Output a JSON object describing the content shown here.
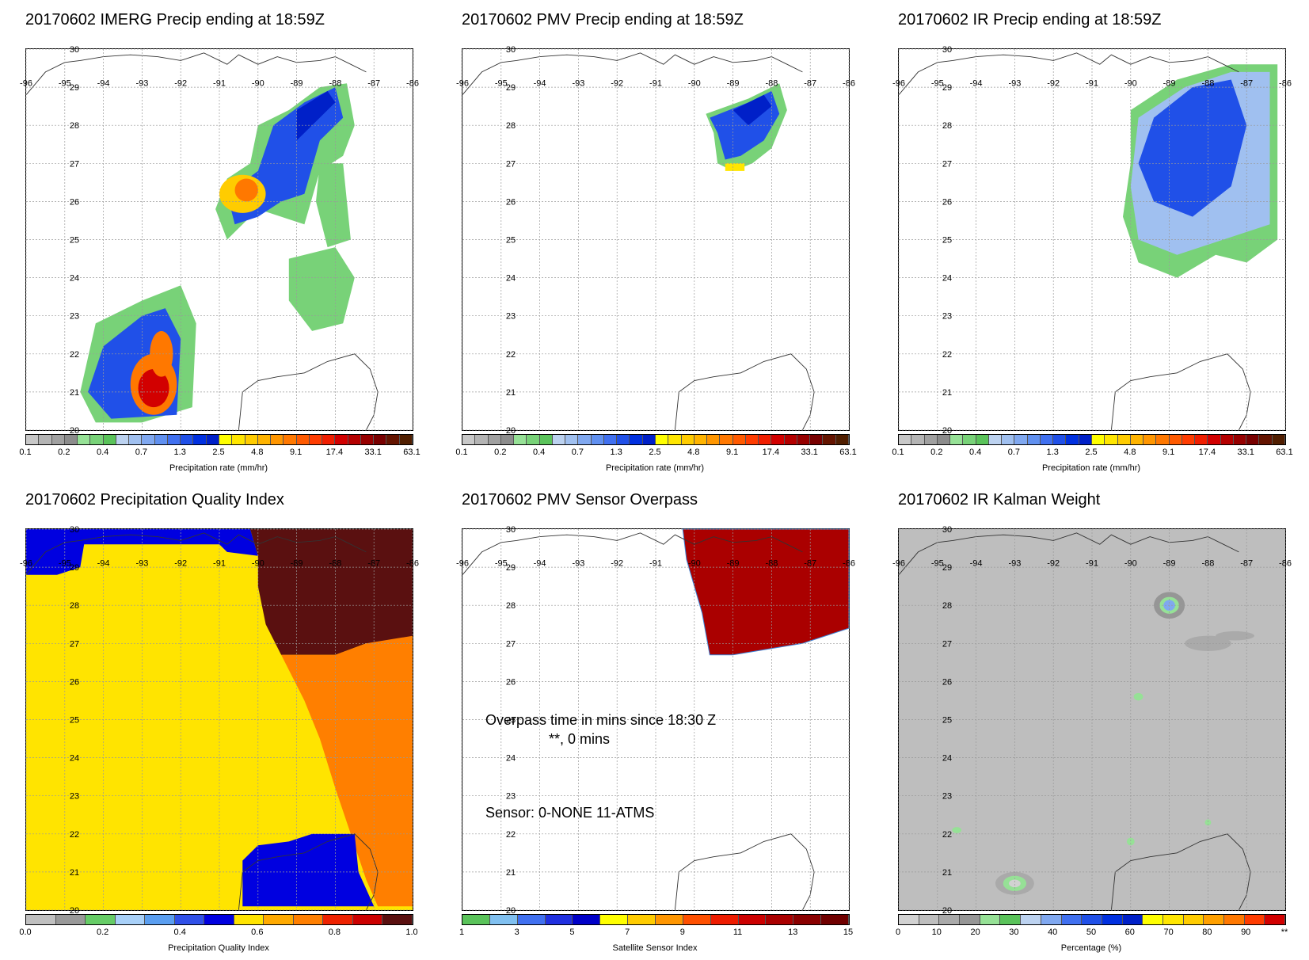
{
  "grid": {
    "lon_labels": [
      "-96",
      "-95",
      "-94",
      "-93",
      "-92",
      "-91",
      "-90",
      "-89",
      "-88",
      "-87",
      "-86"
    ],
    "lat_labels": [
      "20",
      "21",
      "22",
      "23",
      "24",
      "25",
      "26",
      "27",
      "28",
      "29",
      "30"
    ],
    "lon_range": [
      -96,
      -86
    ],
    "lat_range": [
      20,
      30
    ]
  },
  "panels": [
    {
      "id": "imerg",
      "title": "20170602 IMERG Precip ending at 18:59Z",
      "colorbar_title": "Precipitation rate (mm/hr)",
      "tick_labels": [
        "0.1",
        "0.2",
        "0.4",
        "0.7",
        "1.3",
        "2.5",
        "4.8",
        "9.1",
        "17.4",
        "33.1",
        "63.1"
      ]
    },
    {
      "id": "pmv",
      "title": "20170602 PMV Precip ending at 18:59Z",
      "colorbar_title": "Precipitation rate (mm/hr)",
      "tick_labels": [
        "0.1",
        "0.2",
        "0.4",
        "0.7",
        "1.3",
        "2.5",
        "4.8",
        "9.1",
        "17.4",
        "33.1",
        "63.1"
      ]
    },
    {
      "id": "ir",
      "title": "20170602 IR Precip ending at 18:59Z",
      "colorbar_title": "Precipitation rate (mm/hr)",
      "tick_labels": [
        "0.1",
        "0.2",
        "0.4",
        "0.7",
        "1.3",
        "2.5",
        "4.8",
        "9.1",
        "17.4",
        "33.1",
        "63.1"
      ]
    },
    {
      "id": "pqi",
      "title": "20170602 Precipitation Quality Index",
      "colorbar_title": "Precipitation Quality Index",
      "tick_labels": [
        "0.0",
        "0.2",
        "0.4",
        "0.6",
        "0.8",
        "1.0"
      ]
    },
    {
      "id": "overpass",
      "title": "20170602 PMV Sensor Overpass",
      "colorbar_title": "Satellite Sensor Index",
      "tick_labels": [
        "1",
        "3",
        "5",
        "7",
        "9",
        "11",
        "13",
        "15"
      ],
      "overpass_text": "Overpass time in mins since 18:30 Z",
      "overpass_value": "**, 0 mins",
      "sensor_text": "Sensor:   0-NONE 11-ATMS"
    },
    {
      "id": "kalman",
      "title": "20170602 IR Kalman Weight",
      "colorbar_title": "Percentage (%)",
      "tick_labels": [
        "0",
        "10",
        "20",
        "30",
        "40",
        "50",
        "60",
        "70",
        "80",
        "90",
        "**"
      ]
    }
  ],
  "colors": {
    "precip_scale": [
      "#c8c8c8",
      "#b4b4b4",
      "#a0a0a0",
      "#8c8c8c",
      "#96e196",
      "#78d278",
      "#5ac35a",
      "#bcd2f0",
      "#a0c0f0",
      "#80a8f0",
      "#6090f0",
      "#4070f0",
      "#2050e8",
      "#0030e0",
      "#0020c8",
      "#ffff00",
      "#ffe600",
      "#ffcc00",
      "#ffb400",
      "#ff9600",
      "#ff7800",
      "#ff5a00",
      "#ff3c00",
      "#f01e00",
      "#d20000",
      "#b40000",
      "#960000",
      "#780000",
      "#641400",
      "#501e00"
    ],
    "pqi_scale": [
      "#c0c0c0",
      "#999999",
      "#66cc66",
      "#a8d0f8",
      "#5a9ef0",
      "#3050e8",
      "#0000e0",
      "#ffe400",
      "#ffaa00",
      "#ff7f00",
      "#ee2200",
      "#cc0000",
      "#5a1010"
    ],
    "sensor_scale": [
      "#5ac35a",
      "#80c0f0",
      "#4070f0",
      "#2030e0",
      "#0000c8",
      "#ffff00",
      "#ffcc00",
      "#ff9600",
      "#ff5000",
      "#ee1c00",
      "#cc0000",
      "#aa0000",
      "#8a0000",
      "#700000"
    ],
    "kalman_scale": [
      "#d2d2d2",
      "#bebebe",
      "#aaaaaa",
      "#969696",
      "#96e196",
      "#5ac35a",
      "#bcd2f0",
      "#80a8f0",
      "#4070f0",
      "#2050e8",
      "#0030e0",
      "#0020c8",
      "#ffff00",
      "#ffe600",
      "#ffcc00",
      "#ffa000",
      "#ff7800",
      "#ff3c00",
      "#d20000"
    ]
  },
  "chart_data": [
    {
      "type": "heatmap",
      "title": "20170602 IMERG Precip ending at 18:59Z",
      "colorbar_label": "Precipitation rate (mm/hr)",
      "xlim": [
        -96,
        -86
      ],
      "ylim": [
        20,
        30
      ],
      "colorbar_ticks": [
        0.1,
        0.2,
        0.4,
        0.7,
        1.3,
        2.5,
        4.8,
        9.1,
        17.4,
        33.1,
        63.1
      ]
    },
    {
      "type": "heatmap",
      "title": "20170602 PMV Precip ending at 18:59Z",
      "colorbar_label": "Precipitation rate (mm/hr)",
      "xlim": [
        -96,
        -86
      ],
      "ylim": [
        20,
        30
      ],
      "colorbar_ticks": [
        0.1,
        0.2,
        0.4,
        0.7,
        1.3,
        2.5,
        4.8,
        9.1,
        17.4,
        33.1,
        63.1
      ]
    },
    {
      "type": "heatmap",
      "title": "20170602 IR Precip ending at 18:59Z",
      "colorbar_label": "Precipitation rate (mm/hr)",
      "xlim": [
        -96,
        -86
      ],
      "ylim": [
        20,
        30
      ],
      "colorbar_ticks": [
        0.1,
        0.2,
        0.4,
        0.7,
        1.3,
        2.5,
        4.8,
        9.1,
        17.4,
        33.1,
        63.1
      ]
    },
    {
      "type": "heatmap",
      "title": "20170602 Precipitation Quality Index",
      "colorbar_label": "Precipitation Quality Index",
      "xlim": [
        -96,
        -86
      ],
      "ylim": [
        20,
        30
      ],
      "colorbar_ticks": [
        0.0,
        0.2,
        0.4,
        0.6,
        0.8,
        1.0
      ]
    },
    {
      "type": "heatmap",
      "title": "20170602 PMV Sensor Overpass",
      "colorbar_label": "Satellite Sensor Index",
      "xlim": [
        -96,
        -86
      ],
      "ylim": [
        20,
        30
      ],
      "colorbar_ticks": [
        1,
        3,
        5,
        7,
        9,
        11,
        13,
        15
      ]
    },
    {
      "type": "heatmap",
      "title": "20170602 IR Kalman Weight",
      "colorbar_label": "Percentage (%)",
      "xlim": [
        -96,
        -86
      ],
      "ylim": [
        20,
        30
      ],
      "colorbar_ticks": [
        0,
        10,
        20,
        30,
        40,
        50,
        60,
        70,
        80,
        90
      ]
    }
  ]
}
